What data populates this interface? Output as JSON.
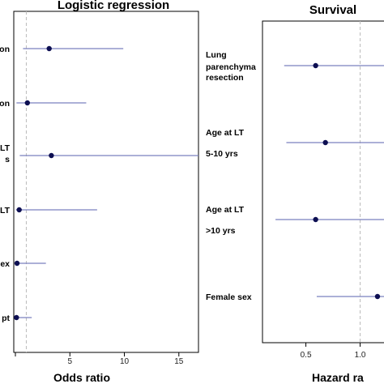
{
  "colors": {
    "ci_line": "#7b80bf",
    "point": "#0d0f52",
    "ref_line": "#bbbbbb",
    "frame": "#000000"
  },
  "chart_data": [
    {
      "type": "forest",
      "title": "Logistic regression",
      "xlabel": "Odds ratio",
      "xlim": [
        0,
        16.8
      ],
      "xticks": [
        "5",
        "10",
        "15"
      ],
      "xtick_values": [
        5,
        10,
        15
      ],
      "reference_line": 1,
      "rows": [
        {
          "label": "on",
          "estimate": 3.1,
          "lower": 0.7,
          "upper": 9.9
        },
        {
          "label": "on",
          "estimate": 1.1,
          "lower": 0.1,
          "upper": 6.5
        },
        {
          "label": "LT\ns",
          "estimate": 3.3,
          "lower": 0.4,
          "upper": 16.8
        },
        {
          "label": "LT",
          "estimate": 0.35,
          "lower": 0.05,
          "upper": 7.5
        },
        {
          "label": "ex",
          "estimate": 0.15,
          "lower": 0.02,
          "upper": 2.8
        },
        {
          "label": "pt",
          "estimate": 0.1,
          "lower": 0.02,
          "upper": 1.5
        }
      ]
    },
    {
      "type": "forest",
      "title": "Survival",
      "xlabel": "Hazard ra",
      "xlim": [
        0.1,
        1.22
      ],
      "xticks": [
        "0.5",
        "1.0"
      ],
      "xtick_values": [
        0.5,
        1.0
      ],
      "reference_line": 1,
      "rows": [
        {
          "label": "Lung\nparenchyma\nresection",
          "estimate": 0.59,
          "lower": 0.3,
          "upper": 1.22
        },
        {
          "label": "Age at LT\n5-10 yrs",
          "estimate": 0.68,
          "lower": 0.32,
          "upper": 1.22
        },
        {
          "label": "Age at LT\n>10 yrs",
          "estimate": 0.59,
          "lower": 0.22,
          "upper": 1.22
        },
        {
          "label": "Female sex",
          "estimate": 1.16,
          "lower": 0.6,
          "upper": 1.22
        }
      ]
    }
  ]
}
